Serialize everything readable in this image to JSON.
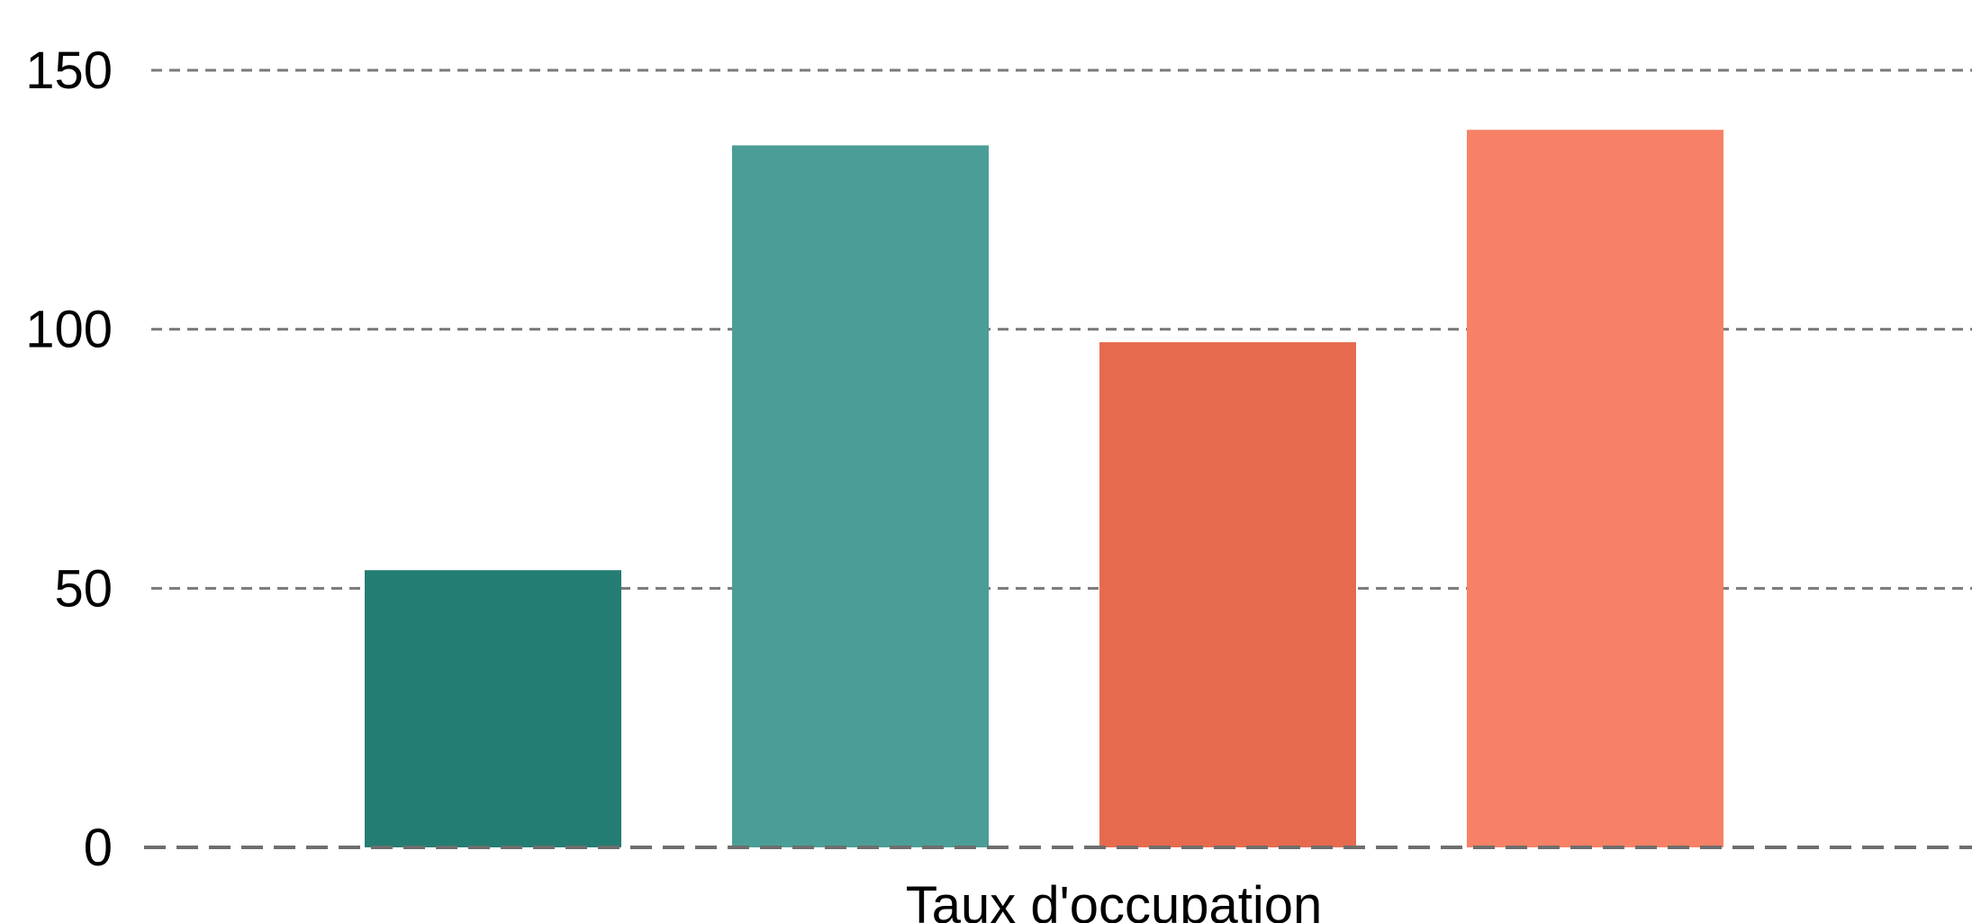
{
  "chart_data": {
    "type": "bar",
    "xlabel": "Taux d'occupation",
    "ylabel": "",
    "ylim": [
      0,
      150
    ],
    "yticks": [
      0,
      50,
      100,
      150
    ],
    "grid": true,
    "legend": "none",
    "series": [
      {
        "values": [
          53.5
        ],
        "color": "#237d73"
      },
      {
        "values": [
          135.5
        ],
        "color": "#4b9e97"
      },
      {
        "values": [
          97.5
        ],
        "color": "#e66b4e"
      },
      {
        "values": [
          138.5
        ],
        "color": "#f78166"
      }
    ]
  }
}
